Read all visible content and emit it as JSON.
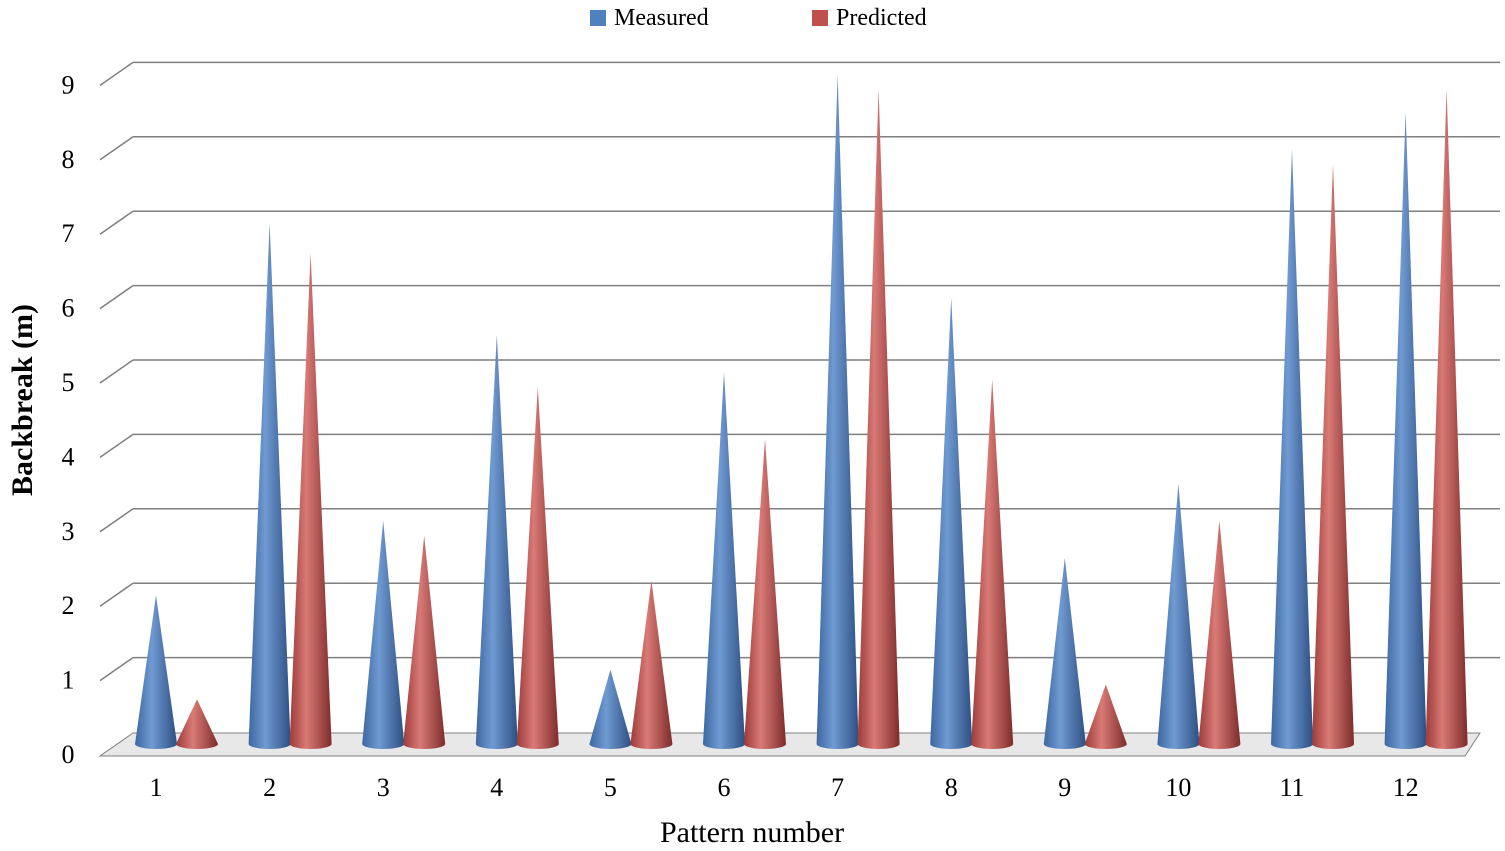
{
  "chart_data": {
    "type": "bar",
    "style": "3d-cone",
    "xlabel": "Pattern number",
    "ylabel": "Backbreak  (m)",
    "categories": [
      "1",
      "2",
      "3",
      "4",
      "5",
      "6",
      "7",
      "8",
      "9",
      "10",
      "11",
      "12"
    ],
    "ylim": [
      0,
      9
    ],
    "yticks": [
      "0",
      "1",
      "2",
      "3",
      "4",
      "5",
      "6",
      "7",
      "8",
      "9"
    ],
    "grid": true,
    "legend_position": "top-center",
    "series": [
      {
        "name": "Measured",
        "color": "#4F81BD",
        "values": [
          2,
          7,
          3,
          5.5,
          1,
          5,
          9,
          6,
          2.5,
          3.5,
          8,
          8.5
        ]
      },
      {
        "name": "Predicted",
        "color": "#C0504D",
        "values": [
          0.6,
          6.6,
          2.8,
          4.8,
          2.2,
          4.1,
          8.8,
          4.9,
          0.8,
          3.0,
          7.8,
          8.8
        ]
      }
    ]
  }
}
